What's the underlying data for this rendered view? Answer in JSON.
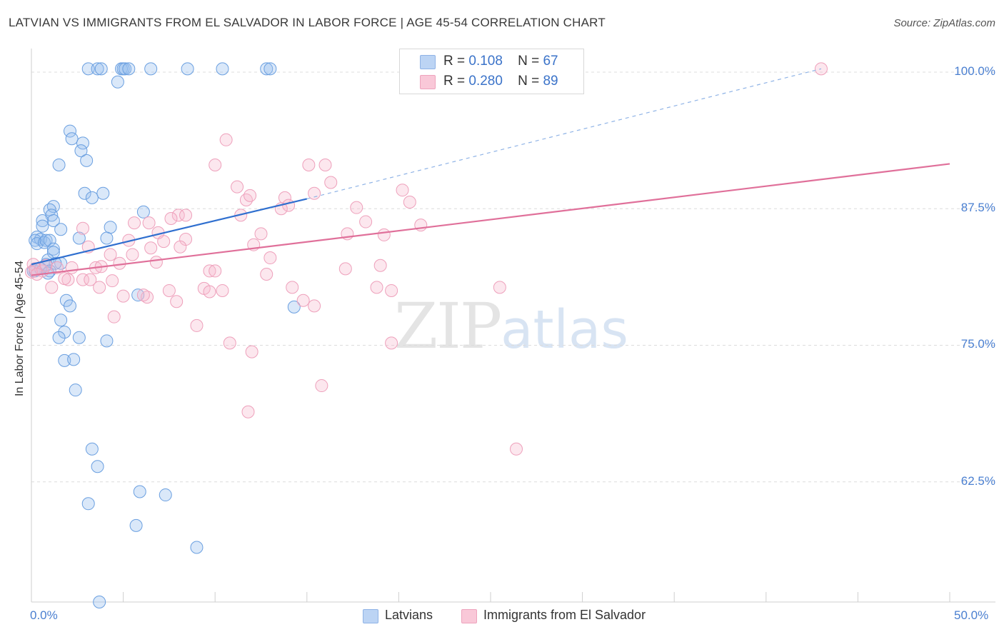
{
  "title": "LATVIAN VS IMMIGRANTS FROM EL SALVADOR IN LABOR FORCE | AGE 45-54 CORRELATION CHART",
  "source": "Source: ZipAtlas.com",
  "watermark": {
    "zip": "ZIP",
    "atlas": "atlas"
  },
  "legend": {
    "r_label": "R =",
    "n_label": "N =",
    "rows": [
      {
        "r": "0.108",
        "n": "67"
      },
      {
        "r": "0.280",
        "n": "89"
      }
    ]
  },
  "chart_data": {
    "type": "scatter",
    "ylabel": "In Labor Force | Age 45-54",
    "xlabel": "",
    "xlim": [
      0,
      50
    ],
    "ylim": [
      51.5,
      101.5
    ],
    "x_tick_labels": [
      "0.0%",
      "50.0%"
    ],
    "y_ticks": [
      62.5,
      75.0,
      87.5,
      100.0
    ],
    "y_tick_labels": [
      "62.5%",
      "75.0%",
      "87.5%",
      "100.0%"
    ],
    "grid": true,
    "colors": {
      "latvians": "#6a9fe0",
      "elsalvador": "#f0a0bc",
      "latvians_line": "#2f6fcf",
      "elsalvador_line": "#e0709a"
    },
    "series": [
      {
        "name": "Latvians",
        "trend": {
          "x0": 0,
          "y0": 82.4,
          "x1": 15,
          "y1": 88.4,
          "dash_to_x": 43,
          "dash_to_y": 100.3
        },
        "points": [
          [
            3.1,
            100.3
          ],
          [
            3.6,
            100.3
          ],
          [
            3.8,
            100.3
          ],
          [
            4.9,
            100.3
          ],
          [
            5.0,
            100.3
          ],
          [
            5.1,
            100.3
          ],
          [
            5.3,
            100.3
          ],
          [
            6.5,
            100.3
          ],
          [
            8.5,
            100.3
          ],
          [
            10.4,
            100.3
          ],
          [
            12.8,
            100.3
          ],
          [
            13.0,
            100.3
          ],
          [
            4.7,
            99.1
          ],
          [
            2.1,
            94.6
          ],
          [
            2.2,
            93.9
          ],
          [
            2.8,
            93.5
          ],
          [
            2.7,
            92.8
          ],
          [
            3.0,
            91.9
          ],
          [
            1.5,
            91.5
          ],
          [
            2.9,
            88.9
          ],
          [
            3.3,
            88.5
          ],
          [
            3.9,
            88.9
          ],
          [
            1.2,
            87.7
          ],
          [
            1.0,
            87.4
          ],
          [
            1.1,
            86.9
          ],
          [
            1.2,
            86.4
          ],
          [
            0.6,
            86.4
          ],
          [
            0.6,
            85.9
          ],
          [
            1.6,
            85.6
          ],
          [
            4.3,
            85.8
          ],
          [
            6.1,
            87.2
          ],
          [
            0.3,
            84.9
          ],
          [
            0.5,
            84.7
          ],
          [
            0.2,
            84.6
          ],
          [
            0.3,
            84.3
          ],
          [
            0.7,
            84.4
          ],
          [
            0.8,
            84.6
          ],
          [
            1.0,
            84.6
          ],
          [
            2.6,
            84.8
          ],
          [
            4.1,
            84.8
          ],
          [
            1.2,
            83.8
          ],
          [
            1.2,
            83.5
          ],
          [
            1.6,
            82.5
          ],
          [
            0.9,
            82.8
          ],
          [
            1.3,
            82.5
          ],
          [
            0.8,
            82.4
          ],
          [
            1.0,
            81.8
          ],
          [
            0.1,
            81.8
          ],
          [
            0.2,
            81.8
          ],
          [
            0.5,
            82.0
          ],
          [
            0.9,
            81.6
          ],
          [
            1.9,
            79.1
          ],
          [
            2.1,
            78.6
          ],
          [
            5.8,
            79.6
          ],
          [
            14.3,
            78.5
          ],
          [
            1.6,
            77.3
          ],
          [
            1.8,
            76.2
          ],
          [
            1.5,
            75.7
          ],
          [
            2.6,
            75.7
          ],
          [
            4.1,
            75.4
          ],
          [
            1.8,
            73.6
          ],
          [
            2.3,
            73.7
          ],
          [
            2.4,
            70.9
          ],
          [
            3.3,
            65.5
          ],
          [
            3.6,
            63.9
          ],
          [
            3.1,
            60.5
          ],
          [
            5.9,
            61.6
          ],
          [
            7.3,
            61.3
          ],
          [
            5.7,
            58.5
          ],
          [
            9.0,
            56.5
          ],
          [
            3.7,
            51.5
          ]
        ]
      },
      {
        "name": "Immigrants from El Salvador",
        "trend": {
          "x0": 0,
          "y0": 81.4,
          "x1": 50,
          "y1": 91.6
        },
        "points": [
          [
            43.0,
            100.3
          ],
          [
            10.6,
            93.8
          ],
          [
            10.0,
            91.5
          ],
          [
            15.1,
            91.5
          ],
          [
            16.0,
            91.5
          ],
          [
            11.2,
            89.5
          ],
          [
            16.3,
            89.9
          ],
          [
            11.7,
            88.3
          ],
          [
            11.9,
            88.7
          ],
          [
            13.8,
            88.5
          ],
          [
            15.4,
            88.9
          ],
          [
            17.7,
            87.6
          ],
          [
            20.2,
            89.2
          ],
          [
            20.6,
            88.1
          ],
          [
            14.0,
            87.8
          ],
          [
            13.6,
            87.5
          ],
          [
            8.0,
            86.9
          ],
          [
            8.4,
            86.9
          ],
          [
            11.4,
            86.9
          ],
          [
            7.6,
            86.6
          ],
          [
            18.2,
            86.3
          ],
          [
            21.2,
            86.0
          ],
          [
            5.6,
            86.2
          ],
          [
            6.4,
            86.2
          ],
          [
            2.8,
            85.7
          ],
          [
            6.9,
            85.3
          ],
          [
            12.5,
            85.2
          ],
          [
            17.2,
            85.2
          ],
          [
            19.2,
            85.1
          ],
          [
            5.3,
            84.6
          ],
          [
            7.2,
            84.5
          ],
          [
            8.4,
            84.7
          ],
          [
            3.1,
            84.0
          ],
          [
            12.1,
            84.2
          ],
          [
            6.5,
            83.9
          ],
          [
            8.1,
            84.0
          ],
          [
            4.3,
            83.3
          ],
          [
            5.5,
            83.3
          ],
          [
            13.0,
            83.0
          ],
          [
            4.8,
            82.5
          ],
          [
            6.8,
            82.6
          ],
          [
            19.0,
            82.3
          ],
          [
            0.1,
            82.4
          ],
          [
            0.2,
            82.0
          ],
          [
            0.6,
            81.8
          ],
          [
            0.8,
            82.3
          ],
          [
            2.2,
            82.1
          ],
          [
            3.5,
            82.1
          ],
          [
            3.8,
            82.2
          ],
          [
            1.4,
            82.1
          ],
          [
            9.7,
            81.8
          ],
          [
            10.0,
            81.8
          ],
          [
            12.8,
            81.5
          ],
          [
            17.1,
            82.0
          ],
          [
            0.0,
            81.7
          ],
          [
            0.3,
            81.5
          ],
          [
            2.0,
            81.0
          ],
          [
            2.8,
            81.0
          ],
          [
            3.2,
            81.0
          ],
          [
            4.4,
            80.9
          ],
          [
            1.8,
            81.1
          ],
          [
            1.1,
            80.3
          ],
          [
            3.7,
            80.3
          ],
          [
            7.5,
            80.0
          ],
          [
            9.4,
            80.2
          ],
          [
            9.7,
            79.9
          ],
          [
            10.4,
            80.0
          ],
          [
            14.2,
            80.3
          ],
          [
            18.8,
            80.3
          ],
          [
            19.6,
            80.0
          ],
          [
            25.5,
            80.3
          ],
          [
            5.0,
            79.5
          ],
          [
            6.3,
            79.4
          ],
          [
            6.1,
            79.6
          ],
          [
            7.9,
            79.0
          ],
          [
            14.8,
            79.1
          ],
          [
            15.4,
            78.6
          ],
          [
            4.5,
            77.6
          ],
          [
            9.0,
            76.8
          ],
          [
            10.8,
            75.2
          ],
          [
            12.0,
            74.4
          ],
          [
            19.6,
            75.2
          ],
          [
            15.8,
            71.3
          ],
          [
            11.8,
            68.9
          ],
          [
            26.4,
            65.5
          ]
        ]
      }
    ]
  }
}
